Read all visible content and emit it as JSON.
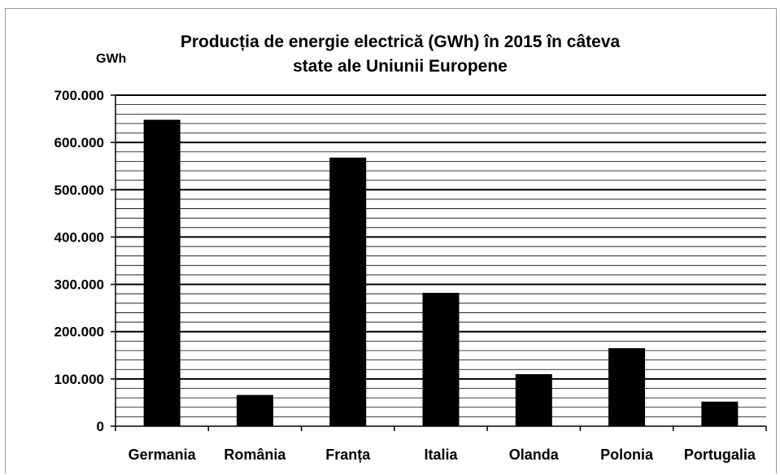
{
  "chart_data": {
    "type": "bar",
    "title_line1": "Producția de energie electrică (GWh) în 2015 în câteva",
    "title_line2": "state ale Uniunii Europene",
    "ylabel": "GWh",
    "xlabel": "",
    "categories": [
      "Germania",
      "România",
      "Franța",
      "Italia",
      "Olanda",
      "Polonia",
      "Portugalia"
    ],
    "values": [
      648000,
      66000,
      568000,
      282000,
      110000,
      165000,
      52000
    ],
    "ylim": [
      0,
      700000
    ],
    "yticks": [
      0,
      100000,
      200000,
      300000,
      400000,
      500000,
      600000,
      700000
    ],
    "ytick_labels": [
      "0",
      "100.000",
      "200.000",
      "300.000",
      "400.000",
      "500.000",
      "600.000",
      "700.000"
    ],
    "minor_step": 20000,
    "grid": true,
    "bar_color": "#000000"
  }
}
